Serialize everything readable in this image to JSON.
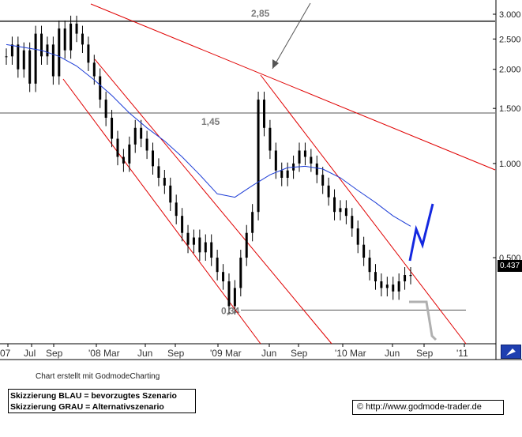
{
  "credit_text": "Chart erstellt mit GodmodeCharting",
  "legend": {
    "blue": "Skizzierung BLAU = bevorzugtes Szenario",
    "gray": "Skizzierung GRAU = Alternativszenario"
  },
  "url_text": "© http://www.godmode-trader.de",
  "last_price": "0.437",
  "colors": {
    "candles": "#000000",
    "moving_average": "#1c3cd6",
    "trend_lines": "#e00000",
    "levels": "#555555",
    "blue_scenario": "#1428e0",
    "gray_scenario": "#b0b0b0"
  },
  "chart_data": {
    "type": "candlestick",
    "y_scale": "log",
    "ylim": [
      0.25,
      3.2
    ],
    "y_ticks": [
      {
        "value": 3.0,
        "label": "3.000"
      },
      {
        "value": 2.5,
        "label": "2.500"
      },
      {
        "value": 2.0,
        "label": "2.000"
      },
      {
        "value": 1.5,
        "label": "1.500"
      },
      {
        "value": 1.0,
        "label": "1.000"
      },
      {
        "value": 0.5,
        "label": "0.500"
      }
    ],
    "x_ticks": [
      "07",
      "Jul",
      "Sep",
      "'08 Mar",
      "Jun",
      "Sep",
      "'09 Mar",
      "Jun",
      "Sep",
      "'10 Mar",
      "Jun",
      "Sep",
      "'11"
    ],
    "horizontal_levels": [
      {
        "value": 2.85,
        "label": "2,85"
      },
      {
        "value": 1.45,
        "label": "1,45"
      },
      {
        "value": 0.34,
        "label": "0,34"
      }
    ],
    "weekly_close": [
      2.2,
      2.4,
      2.0,
      2.3,
      1.8,
      2.6,
      2.2,
      2.4,
      1.9,
      2.7,
      2.3,
      2.8,
      2.6,
      2.4,
      2.1,
      1.9,
      1.6,
      1.4,
      1.2,
      1.05,
      1.0,
      1.15,
      1.3,
      1.2,
      1.1,
      0.98,
      0.9,
      0.85,
      0.75,
      0.68,
      0.6,
      0.55,
      0.58,
      0.52,
      0.56,
      0.5,
      0.45,
      0.42,
      0.35,
      0.4,
      0.5,
      0.6,
      0.7,
      1.6,
      1.3,
      1.1,
      0.95,
      0.9,
      0.95,
      1.0,
      1.1,
      1.05,
      1.0,
      0.92,
      0.85,
      0.78,
      0.7,
      0.72,
      0.68,
      0.62,
      0.55,
      0.5,
      0.45,
      0.42,
      0.4,
      0.41,
      0.39,
      0.42,
      0.44,
      0.437
    ],
    "moving_average": [
      2.4,
      2.35,
      2.3,
      2.2,
      2.05,
      1.85,
      1.65,
      1.45,
      1.3,
      1.18,
      1.05,
      0.92,
      0.8,
      0.78,
      0.85,
      0.92,
      0.97,
      0.98,
      0.96,
      0.9,
      0.82,
      0.75,
      0.68,
      0.63
    ],
    "last_value": 0.437
  }
}
